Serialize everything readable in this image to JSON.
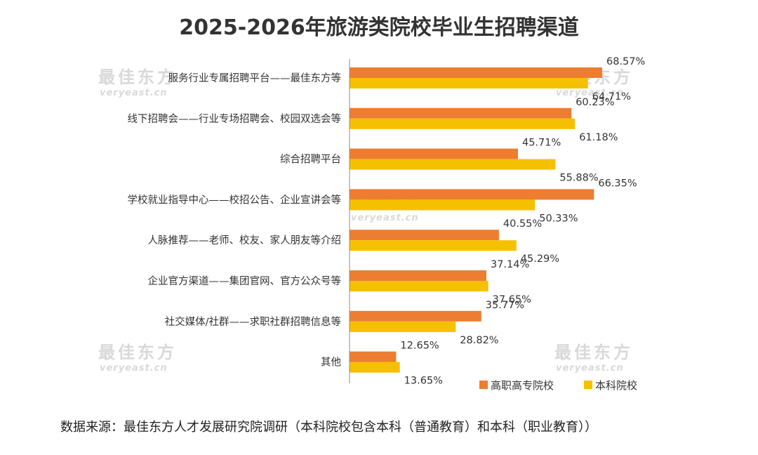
{
  "chart_data": {
    "type": "bar",
    "orientation": "horizontal",
    "title": "2025-2026年旅游类院校毕业生招聘渠道",
    "categories": [
      "服务行业专属招聘平台——最佳东方等",
      "线下招聘会——行业专场招聘会、校园双选会等",
      "综合招聘平台",
      "学校就业指导中心——校招公告、企业宣讲会等",
      "人脉推荐——老师、校友、家人朋友等介绍",
      "企业官方渠道——集团官网、官方公众号等",
      "社交媒体/社群——求职社群招聘信息等",
      "其他"
    ],
    "series": [
      {
        "name": "高职高专院校",
        "color": "#ED7D31",
        "values": [
          68.57,
          60.23,
          45.71,
          66.35,
          40.55,
          37.14,
          35.77,
          12.65
        ],
        "labels": [
          "68.57%",
          "60.23%",
          "45.71%",
          "66.35%",
          "40.55%",
          "37.14%",
          "35.77%",
          "12.65%"
        ]
      },
      {
        "name": "本科院校",
        "color": "#F5C000",
        "values": [
          64.71,
          61.18,
          55.88,
          50.33,
          45.29,
          37.65,
          28.82,
          13.65
        ],
        "labels": [
          "64.71%",
          "61.18%",
          "55.88%",
          "50.33%",
          "45.29%",
          "37.65%",
          "28.82%",
          "13.65%"
        ]
      }
    ],
    "xlim": [
      0,
      70
    ],
    "grid": false,
    "legend_position": "bottom-right"
  },
  "watermark": {
    "brand": "最佳东方",
    "site": "veryeast.cn"
  },
  "source_note": "数据来源：最佳东方人才发展研究院调研（本科院校包含本科（普通教育）和本科（职业教育））"
}
